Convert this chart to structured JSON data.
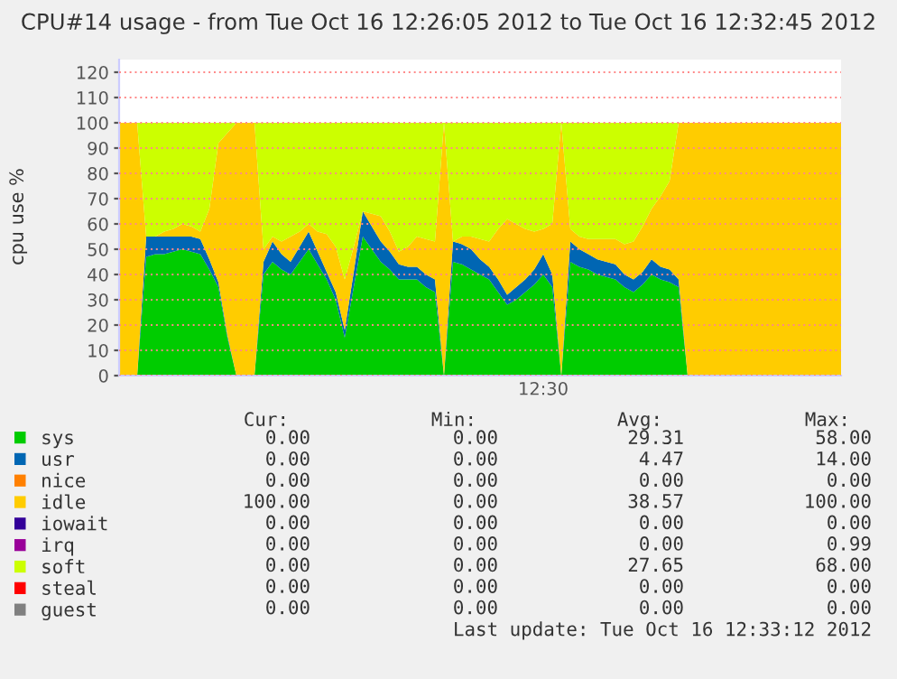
{
  "chart_data": {
    "type": "area",
    "stacked": true,
    "title": "CPU#14 usage - from Tue Oct 16 12:26:05 2012 to Tue Oct 16 12:32:45 2012",
    "ylabel": "cpu use %",
    "categories": [
      null,
      null,
      null,
      null,
      null,
      null,
      null,
      null,
      null,
      null,
      null,
      null,
      null,
      null,
      null,
      null,
      null,
      null,
      null,
      null,
      null,
      null,
      null,
      null,
      null,
      null,
      null,
      null,
      null,
      null,
      null,
      null,
      null,
      null,
      null,
      null,
      null,
      null,
      null,
      null,
      null,
      null,
      null,
      null,
      null,
      null,
      null,
      null,
      null,
      null,
      null,
      null,
      null,
      null,
      null,
      null,
      null,
      null,
      null,
      null,
      null,
      null,
      null,
      null,
      null,
      null,
      null,
      null,
      null,
      null,
      null,
      null,
      null,
      null,
      null,
      null,
      null,
      null,
      null,
      null,
      null
    ],
    "series": [
      {
        "name": "sys",
        "color": "#00cc00",
        "values": [
          0,
          0,
          0,
          47,
          48,
          48,
          49,
          50,
          49,
          48,
          42,
          35,
          15,
          0,
          0,
          0,
          40,
          45,
          42,
          40,
          45,
          50,
          44,
          38,
          30,
          15,
          35,
          55,
          50,
          45,
          42,
          38,
          38,
          38,
          35,
          33,
          0,
          45,
          44,
          42,
          40,
          38,
          33,
          28,
          30,
          33,
          36,
          40,
          35,
          0,
          45,
          43,
          42,
          40,
          39,
          38,
          35,
          33,
          36,
          40,
          38,
          37,
          35,
          0,
          0,
          0,
          0,
          0,
          0,
          0,
          0,
          0,
          0,
          0,
          0,
          0,
          0,
          0,
          0,
          0,
          0
        ]
      },
      {
        "name": "usr",
        "color": "#0066b3",
        "values": [
          0,
          0,
          0,
          8,
          7,
          7,
          6,
          5,
          6,
          6,
          4,
          2,
          1,
          0,
          0,
          0,
          5,
          8,
          6,
          5,
          6,
          7,
          5,
          3,
          3,
          3,
          6,
          10,
          9,
          8,
          7,
          6,
          5,
          5,
          5,
          5,
          0,
          8,
          8,
          8,
          6,
          5,
          5,
          4,
          5,
          5,
          6,
          8,
          5,
          0,
          8,
          7,
          6,
          6,
          6,
          6,
          5,
          5,
          5,
          6,
          5,
          5,
          3,
          0,
          0,
          0,
          0,
          0,
          0,
          0,
          0,
          0,
          0,
          0,
          0,
          0,
          0,
          0,
          0,
          0,
          0
        ]
      },
      {
        "name": "nice",
        "color": "#ff8000",
        "values": [
          null,
          null,
          null,
          null,
          null,
          null,
          null,
          null,
          null,
          null,
          null,
          null,
          null,
          null,
          null,
          null,
          null,
          null,
          null,
          null,
          null,
          null,
          null,
          null,
          null,
          null,
          null,
          null,
          null,
          null,
          null,
          null,
          null,
          null,
          null,
          null,
          null,
          null,
          null,
          null,
          null,
          null,
          null,
          null,
          null,
          null,
          null,
          null,
          null,
          null,
          null,
          null,
          null,
          null,
          null,
          null,
          null,
          null,
          null,
          null,
          null,
          null,
          null,
          null,
          null,
          null,
          null,
          null,
          null,
          null,
          null,
          null,
          null,
          null,
          null,
          null,
          null,
          null,
          null,
          null,
          null
        ]
      },
      {
        "name": "idle",
        "color": "#ffcc00",
        "values": [
          100,
          100,
          100,
          0,
          0,
          2,
          3,
          5,
          4,
          3,
          20,
          55,
          80,
          100,
          100,
          100,
          5,
          2,
          5,
          10,
          6,
          3,
          8,
          15,
          18,
          20,
          10,
          0,
          5,
          10,
          8,
          5,
          8,
          12,
          14,
          15,
          100,
          0,
          3,
          5,
          8,
          10,
          20,
          30,
          25,
          20,
          15,
          10,
          20,
          100,
          5,
          5,
          6,
          8,
          9,
          10,
          12,
          15,
          18,
          20,
          28,
          35,
          62,
          100,
          100,
          100,
          100,
          100,
          100,
          100,
          100,
          100,
          100,
          100,
          100,
          100,
          100,
          100,
          100,
          100,
          100
        ]
      },
      {
        "name": "iowait",
        "color": "#330099",
        "values": [
          null,
          null,
          null,
          null,
          null,
          null,
          null,
          null,
          null,
          null,
          null,
          null,
          null,
          null,
          null,
          null,
          null,
          null,
          null,
          null,
          null,
          null,
          null,
          null,
          null,
          null,
          null,
          null,
          null,
          null,
          null,
          null,
          null,
          null,
          null,
          null,
          null,
          null,
          null,
          null,
          null,
          null,
          null,
          null,
          null,
          null,
          null,
          null,
          null,
          null,
          null,
          null,
          null,
          null,
          null,
          null,
          null,
          null,
          null,
          null,
          null,
          null,
          null,
          null,
          null,
          null,
          null,
          null,
          null,
          null,
          null,
          null,
          null,
          null,
          null,
          null,
          null,
          null,
          null,
          null,
          null
        ]
      },
      {
        "name": "irq",
        "color": "#990099",
        "values": [
          null,
          null,
          null,
          null,
          null,
          null,
          null,
          null,
          null,
          null,
          null,
          null,
          null,
          null,
          null,
          null,
          null,
          null,
          null,
          null,
          null,
          null,
          null,
          null,
          null,
          null,
          null,
          null,
          null,
          null,
          null,
          null,
          null,
          null,
          null,
          null,
          null,
          null,
          null,
          null,
          null,
          null,
          null,
          null,
          null,
          null,
          null,
          null,
          null,
          null,
          null,
          null,
          null,
          null,
          null,
          null,
          null,
          null,
          null,
          null,
          null,
          null,
          null,
          null,
          null,
          null,
          null,
          null,
          null,
          null,
          null,
          null,
          null,
          null,
          null,
          null,
          null,
          null,
          null,
          null,
          null
        ]
      },
      {
        "name": "soft",
        "color": "#ccff00",
        "values": [
          0,
          0,
          0,
          45,
          45,
          43,
          42,
          40,
          41,
          43,
          34,
          8,
          4,
          0,
          0,
          0,
          50,
          45,
          47,
          45,
          43,
          40,
          43,
          44,
          49,
          62,
          49,
          35,
          36,
          37,
          43,
          51,
          49,
          45,
          46,
          47,
          0,
          47,
          45,
          45,
          46,
          47,
          42,
          38,
          40,
          42,
          43,
          42,
          40,
          0,
          42,
          45,
          46,
          46,
          46,
          46,
          48,
          47,
          41,
          34,
          29,
          23,
          0,
          0,
          0,
          0,
          0,
          0,
          0,
          0,
          0,
          0,
          0,
          0,
          0,
          0,
          0,
          0,
          0,
          0,
          0
        ]
      },
      {
        "name": "steal",
        "color": "#ff0000",
        "values": [
          null,
          null,
          null,
          null,
          null,
          null,
          null,
          null,
          null,
          null,
          null,
          null,
          null,
          null,
          null,
          null,
          null,
          null,
          null,
          null,
          null,
          null,
          null,
          null,
          null,
          null,
          null,
          null,
          null,
          null,
          null,
          null,
          null,
          null,
          null,
          null,
          null,
          null,
          null,
          null,
          null,
          null,
          null,
          null,
          null,
          null,
          null,
          null,
          null,
          null,
          null,
          null,
          null,
          null,
          null,
          null,
          null,
          null,
          null,
          null,
          null,
          null,
          null,
          null,
          null,
          null,
          null,
          null,
          null,
          null,
          null,
          null,
          null,
          null,
          null,
          null,
          null,
          null,
          null,
          null,
          null
        ]
      },
      {
        "name": "guest",
        "color": "#808080",
        "values": [
          null,
          null,
          null,
          null,
          null,
          null,
          null,
          null,
          null,
          null,
          null,
          null,
          null,
          null,
          null,
          null,
          null,
          null,
          null,
          null,
          null,
          null,
          null,
          null,
          null,
          null,
          null,
          null,
          null,
          null,
          null,
          null,
          null,
          null,
          null,
          null,
          null,
          null,
          null,
          null,
          null,
          null,
          null,
          null,
          null,
          null,
          null,
          null,
          null,
          null,
          null,
          null,
          null,
          null,
          null,
          null,
          null,
          null,
          null,
          null,
          null,
          null,
          null,
          null,
          null,
          null,
          null,
          null,
          null,
          null,
          null,
          null,
          null,
          null,
          null,
          null,
          null,
          null,
          null,
          null,
          null
        ]
      }
    ],
    "ylim": [
      0,
      125
    ],
    "yticks": [
      0,
      10,
      20,
      30,
      40,
      50,
      60,
      70,
      80,
      90,
      100,
      110,
      120
    ],
    "grid": "y",
    "legend": "bottom",
    "annotations": [
      "12:30",
      "Cur:",
      "Min:",
      "Avg:",
      "Max:",
      "0.00",
      "0.00",
      "29.31",
      "58.00",
      "0.00",
      "0.00",
      "4.47",
      "14.00",
      "0.00",
      "0.00",
      "0.00",
      "0.00",
      "100.00",
      "0.00",
      "38.57",
      "100.00",
      "0.00",
      "0.00",
      "0.00",
      "0.00",
      "0.00",
      "0.00",
      "0.00",
      "0.99",
      "0.00",
      "0.00",
      "27.65",
      "68.00",
      "0.00",
      "0.00",
      "0.00",
      "0.00",
      "0.00",
      "0.00",
      "0.00",
      "0.00",
      "Last update: Tue Oct 16 12:33:12 2012"
    ]
  }
}
